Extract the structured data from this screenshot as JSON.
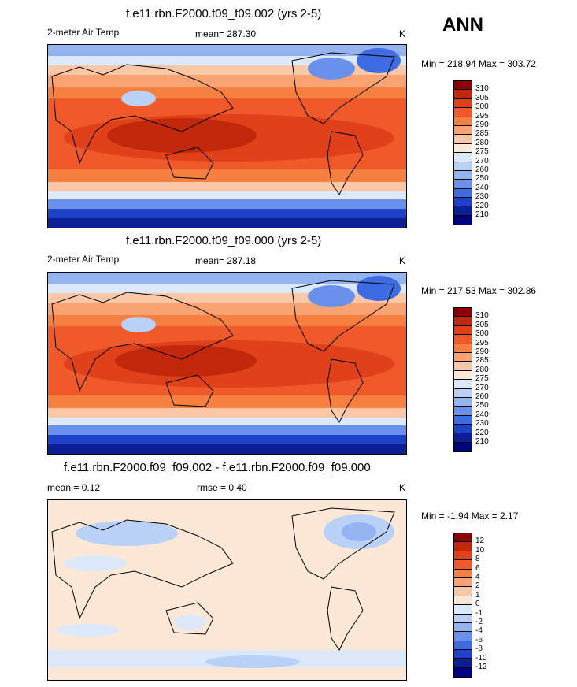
{
  "season": "ANN",
  "panels": [
    {
      "title": "f.e11.rbn.F2000.f09_f09.002 (yrs 2-5)",
      "left_label": "2-meter Air Temp",
      "center_label": "mean= 287.30",
      "right_label": "K",
      "minmax": "Min = 218.94 Max = 303.72",
      "colorbar_labels": [
        "310",
        "305",
        "300",
        "295",
        "290",
        "285",
        "280",
        "275",
        "270",
        "260",
        "250",
        "240",
        "230",
        "220",
        "210"
      ],
      "colorbar_colors": [
        "#8b0000",
        "#c1280a",
        "#e0401a",
        "#f05a2a",
        "#f5803f",
        "#f9a372",
        "#fbc8a7",
        "#fde8d8",
        "#dce9fb",
        "#b9d1f7",
        "#93b3f1",
        "#6991ec",
        "#3d6be4",
        "#1d42c8",
        "#0a1f93",
        "#000080"
      ]
    },
    {
      "title": "f.e11.rbn.F2000.f09_f09.000 (yrs 2-5)",
      "left_label": "2-meter Air Temp",
      "center_label": "mean= 287.18",
      "right_label": "K",
      "minmax": "Min = 217.53 Max = 302.86",
      "colorbar_labels": [
        "310",
        "305",
        "300",
        "295",
        "290",
        "285",
        "280",
        "275",
        "270",
        "260",
        "250",
        "240",
        "230",
        "220",
        "210"
      ],
      "colorbar_colors": [
        "#8b0000",
        "#c1280a",
        "#e0401a",
        "#f05a2a",
        "#f5803f",
        "#f9a372",
        "#fbc8a7",
        "#fde8d8",
        "#dce9fb",
        "#b9d1f7",
        "#93b3f1",
        "#6991ec",
        "#3d6be4",
        "#1d42c8",
        "#0a1f93",
        "#000080"
      ]
    },
    {
      "title": "f.e11.rbn.F2000.f09_f09.002 - f.e11.rbn.F2000.f09_f09.000",
      "left_label": "mean =   0.12",
      "center_label": "rmse =   0.40",
      "right_label": "K",
      "minmax": "Min =  -1.94 Max =   2.17",
      "colorbar_labels": [
        "12",
        "10",
        "8",
        "6",
        "4",
        "2",
        "1",
        "0",
        "-1",
        "-2",
        "-4",
        "-6",
        "-8",
        "-10",
        "-12"
      ],
      "colorbar_colors": [
        "#8b0000",
        "#c1280a",
        "#e0401a",
        "#f05a2a",
        "#f5803f",
        "#f9a372",
        "#fbc8a7",
        "#fde8d8",
        "#dce9fb",
        "#b9d1f7",
        "#93b3f1",
        "#6991ec",
        "#3d6be4",
        "#1d42c8",
        "#0a1f93",
        "#000080"
      ]
    }
  ],
  "chart_data": [
    {
      "type": "heatmap",
      "title": "f.e11.rbn.F2000.f09_f09.002 (yrs 2-5)",
      "variable": "2-meter Air Temp",
      "units": "K",
      "mean": 287.3,
      "min": 218.94,
      "max": 303.72,
      "contour_levels": [
        210,
        220,
        230,
        240,
        250,
        260,
        270,
        275,
        280,
        285,
        290,
        295,
        300,
        305,
        310
      ]
    },
    {
      "type": "heatmap",
      "title": "f.e11.rbn.F2000.f09_f09.000 (yrs 2-5)",
      "variable": "2-meter Air Temp",
      "units": "K",
      "mean": 287.18,
      "min": 217.53,
      "max": 302.86,
      "contour_levels": [
        210,
        220,
        230,
        240,
        250,
        260,
        270,
        275,
        280,
        285,
        290,
        295,
        300,
        305,
        310
      ]
    },
    {
      "type": "heatmap",
      "title": "f.e11.rbn.F2000.f09_f09.002 - f.e11.rbn.F2000.f09_f09.000",
      "units": "K",
      "mean": 0.12,
      "rmse": 0.4,
      "min": -1.94,
      "max": 2.17,
      "contour_levels": [
        -12,
        -10,
        -8,
        -6,
        -4,
        -2,
        -1,
        0,
        1,
        2,
        4,
        6,
        8,
        10,
        12
      ]
    }
  ]
}
